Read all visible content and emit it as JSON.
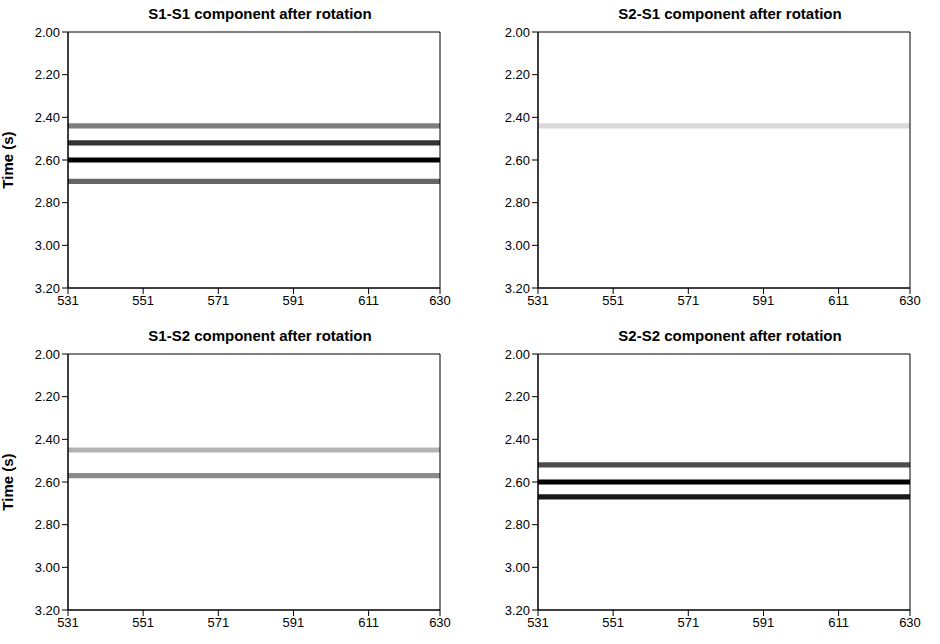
{
  "chart_data": [
    {
      "type": "seismic",
      "title": "S1-S1 component after rotation",
      "y_label": "Time (s)",
      "xlim": [
        531,
        630
      ],
      "xticks": [
        531,
        551,
        571,
        591,
        611,
        630
      ],
      "ylim": [
        2.0,
        3.2
      ],
      "yticks": [
        {
          "value": 2.0,
          "label": "2.00"
        },
        {
          "value": 2.2,
          "label": "2.20"
        },
        {
          "value": 2.4,
          "label": "2.40"
        },
        {
          "value": 2.6,
          "label": "2.60"
        },
        {
          "value": 2.8,
          "label": "2.80"
        },
        {
          "value": 3.0,
          "label": "3.00"
        },
        {
          "value": 3.2,
          "label": "3.20"
        }
      ],
      "events": [
        {
          "time": 2.44,
          "amplitude": 0.5
        },
        {
          "time": 2.52,
          "amplitude": 0.8
        },
        {
          "time": 2.6,
          "amplitude": 1.0
        },
        {
          "time": 2.7,
          "amplitude": 0.6
        }
      ]
    },
    {
      "type": "seismic",
      "title": "S2-S1 component after rotation",
      "xlim": [
        531,
        630
      ],
      "xticks": [
        531,
        551,
        571,
        591,
        611,
        630
      ],
      "ylim": [
        2.0,
        3.2
      ],
      "yticks": [
        {
          "value": 2.0,
          "label": "2.00"
        },
        {
          "value": 2.2,
          "label": "2.20"
        },
        {
          "value": 2.4,
          "label": "2.40"
        },
        {
          "value": 2.6,
          "label": "2.60"
        },
        {
          "value": 2.8,
          "label": "2.80"
        },
        {
          "value": 3.0,
          "label": "3.00"
        },
        {
          "value": 3.2,
          "label": "3.20"
        }
      ],
      "events": [
        {
          "time": 2.44,
          "amplitude": 0.15
        }
      ]
    },
    {
      "type": "seismic",
      "title": "S1-S2 component after rotation",
      "y_label": "Time (s)",
      "xlim": [
        531,
        630
      ],
      "xticks": [
        531,
        551,
        571,
        591,
        611,
        630
      ],
      "ylim": [
        2.0,
        3.2
      ],
      "yticks": [
        {
          "value": 2.0,
          "label": "2.00"
        },
        {
          "value": 2.2,
          "label": "2.20"
        },
        {
          "value": 2.4,
          "label": "2.40"
        },
        {
          "value": 2.6,
          "label": "2.60"
        },
        {
          "value": 2.8,
          "label": "2.80"
        },
        {
          "value": 3.0,
          "label": "3.00"
        },
        {
          "value": 3.2,
          "label": "3.20"
        }
      ],
      "events": [
        {
          "time": 2.45,
          "amplitude": 0.3
        },
        {
          "time": 2.57,
          "amplitude": 0.45
        }
      ]
    },
    {
      "type": "seismic",
      "title": "S2-S2 component after rotation",
      "xlim": [
        531,
        630
      ],
      "xticks": [
        531,
        551,
        571,
        591,
        611,
        630
      ],
      "ylim": [
        2.0,
        3.2
      ],
      "yticks": [
        {
          "value": 2.0,
          "label": "2.00"
        },
        {
          "value": 2.2,
          "label": "2.20"
        },
        {
          "value": 2.4,
          "label": "2.40"
        },
        {
          "value": 2.6,
          "label": "2.60"
        },
        {
          "value": 2.8,
          "label": "2.80"
        },
        {
          "value": 3.0,
          "label": "3.00"
        },
        {
          "value": 3.2,
          "label": "3.20"
        }
      ],
      "events": [
        {
          "time": 2.52,
          "amplitude": 0.7
        },
        {
          "time": 2.6,
          "amplitude": 1.0
        },
        {
          "time": 2.67,
          "amplitude": 0.9
        }
      ]
    }
  ]
}
